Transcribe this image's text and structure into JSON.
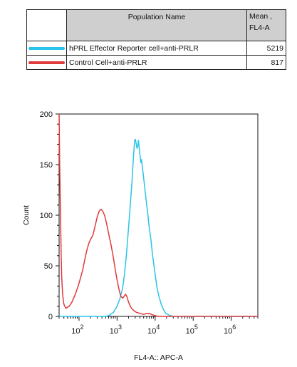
{
  "legend": {
    "header_name": "Population Name",
    "header_mean_line1": "Mean ,",
    "header_mean_line2": "FL4-A",
    "rows": [
      {
        "name": "hPRL Effector Reporter cell+anti-PRLR",
        "mean": "5219",
        "color": "#29c4e9"
      },
      {
        "name": "Control Cell+anti-PRLR",
        "mean": "817",
        "color": "#e03a3a"
      }
    ]
  },
  "chart_data": {
    "type": "histogram",
    "title": "",
    "xlabel": "FL4-A:: APC-A",
    "ylabel": "Count",
    "x_scale": "log",
    "ylim": [
      0,
      200
    ],
    "y_ticks": [
      "0",
      "50",
      "100",
      "150",
      "200"
    ],
    "x_ticks": [
      {
        "value": 100,
        "base": "10",
        "exp": "2"
      },
      {
        "value": 1000,
        "base": "10",
        "exp": "3"
      },
      {
        "value": 10000,
        "base": "10",
        "exp": "4"
      },
      {
        "value": 100000,
        "base": "10",
        "exp": "5"
      },
      {
        "value": 1000000,
        "base": "10",
        "exp": "6"
      }
    ],
    "series": [
      {
        "name": "hPRL Effector Reporter cell+anti-PRLR",
        "color": "#29c4e9",
        "points": [
          [
            30,
            0
          ],
          [
            500,
            0
          ],
          [
            620,
            1
          ],
          [
            800,
            4
          ],
          [
            1000,
            10
          ],
          [
            1200,
            18
          ],
          [
            1400,
            28
          ],
          [
            1550,
            40
          ],
          [
            1700,
            55
          ],
          [
            1850,
            70
          ],
          [
            2000,
            88
          ],
          [
            2150,
            102
          ],
          [
            2300,
            118
          ],
          [
            2450,
            132
          ],
          [
            2600,
            148
          ],
          [
            2750,
            162
          ],
          [
            2900,
            174
          ],
          [
            3050,
            175
          ],
          [
            3200,
            170
          ],
          [
            3350,
            166
          ],
          [
            3500,
            168
          ],
          [
            3650,
            174
          ],
          [
            3800,
            168
          ],
          [
            4000,
            160
          ],
          [
            4200,
            152
          ],
          [
            4400,
            155
          ],
          [
            4600,
            148
          ],
          [
            4900,
            140
          ],
          [
            5300,
            128
          ],
          [
            5800,
            115
          ],
          [
            6400,
            102
          ],
          [
            7000,
            88
          ],
          [
            7800,
            75
          ],
          [
            8600,
            60
          ],
          [
            9500,
            48
          ],
          [
            10500,
            36
          ],
          [
            11500,
            26
          ],
          [
            13000,
            18
          ],
          [
            14500,
            12
          ],
          [
            16500,
            7
          ],
          [
            19000,
            3
          ],
          [
            24000,
            1
          ],
          [
            30000,
            0
          ],
          [
            1000000,
            0
          ],
          [
            5000000,
            0
          ]
        ]
      },
      {
        "name": "Control Cell+anti-PRLR",
        "color": "#e03a3a",
        "points": [
          [
            30,
            200
          ],
          [
            31,
            150
          ],
          [
            32,
            120
          ],
          [
            33,
            90
          ],
          [
            34,
            60
          ],
          [
            35,
            40
          ],
          [
            37,
            22
          ],
          [
            40,
            12
          ],
          [
            45,
            8
          ],
          [
            55,
            10
          ],
          [
            65,
            14
          ],
          [
            80,
            22
          ],
          [
            95,
            30
          ],
          [
            110,
            38
          ],
          [
            125,
            46
          ],
          [
            140,
            55
          ],
          [
            160,
            65
          ],
          [
            180,
            72
          ],
          [
            200,
            76
          ],
          [
            230,
            80
          ],
          [
            260,
            88
          ],
          [
            300,
            98
          ],
          [
            340,
            104
          ],
          [
            380,
            106
          ],
          [
            420,
            104
          ],
          [
            470,
            100
          ],
          [
            530,
            92
          ],
          [
            600,
            82
          ],
          [
            700,
            70
          ],
          [
            800,
            58
          ],
          [
            900,
            46
          ],
          [
            1000,
            36
          ],
          [
            1120,
            27
          ],
          [
            1250,
            20
          ],
          [
            1400,
            18
          ],
          [
            1550,
            20
          ],
          [
            1650,
            22
          ],
          [
            1800,
            20
          ],
          [
            2000,
            14
          ],
          [
            2300,
            9
          ],
          [
            2700,
            6
          ],
          [
            3200,
            4
          ],
          [
            4000,
            3
          ],
          [
            5000,
            2
          ],
          [
            6000,
            3
          ],
          [
            7000,
            3
          ],
          [
            8000,
            2
          ],
          [
            9500,
            1
          ],
          [
            12000,
            0
          ],
          [
            5000000,
            0
          ]
        ]
      }
    ]
  }
}
